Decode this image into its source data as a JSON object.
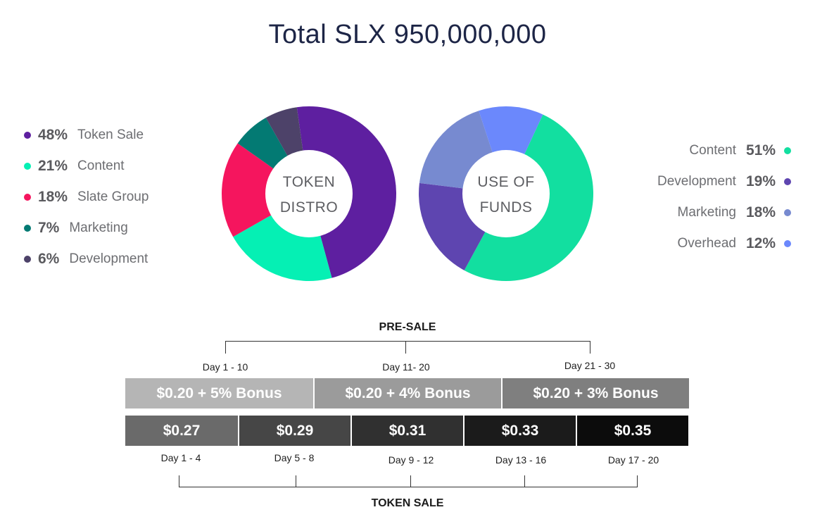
{
  "title": "Total SLX 950,000,000",
  "chart_data": [
    {
      "type": "pie",
      "center_label_lines": [
        "TOKEN",
        "DISTRO"
      ],
      "slices": [
        {
          "label": "Token Sale",
          "pct_label": "48%",
          "value": 48,
          "color": "#5e1fa0"
        },
        {
          "label": "Content",
          "pct_label": "21%",
          "value": 21,
          "color": "#05f0b4"
        },
        {
          "label": "Slate Group",
          "pct_label": "18%",
          "value": 18,
          "color": "#f5155e"
        },
        {
          "label": "Marketing",
          "pct_label": "7%",
          "value": 7,
          "color": "#037a73"
        },
        {
          "label": "Development",
          "pct_label": "6%",
          "value": 6,
          "color": "#4d4269"
        }
      ],
      "legend_position": "left"
    },
    {
      "type": "pie",
      "center_label_lines": [
        "USE OF",
        "FUNDS"
      ],
      "slices": [
        {
          "label": "Content",
          "pct_label": "51%",
          "value": 51,
          "color": "#12dfa0"
        },
        {
          "label": "Development",
          "pct_label": "19%",
          "value": 19,
          "color": "#5e45b0"
        },
        {
          "label": "Marketing",
          "pct_label": "18%",
          "value": 18,
          "color": "#778ad0"
        },
        {
          "label": "Overhead",
          "pct_label": "12%",
          "value": 12,
          "color": "#6b88fc"
        }
      ],
      "legend_position": "right"
    }
  ],
  "presale": {
    "heading": "PRE-SALE",
    "tiers": [
      {
        "days": "Day 1 - 10",
        "price": "$0.20 + 5% Bonus",
        "color": "#b5b5b5"
      },
      {
        "days": "Day 11- 20",
        "price": "$0.20 + 4% Bonus",
        "color": "#9b9b9b"
      },
      {
        "days": "Day 21 - 30",
        "price": "$0.20 + 3% Bonus",
        "color": "#7f7f7f"
      }
    ]
  },
  "token_sale": {
    "heading": "TOKEN SALE",
    "tiers": [
      {
        "days": "Day 1 - 4",
        "price": "$0.27",
        "color": "#6a6a6a"
      },
      {
        "days": "Day 5 - 8",
        "price": "$0.29",
        "color": "#464646"
      },
      {
        "days": "Day 9 - 12",
        "price": "$0.31",
        "color": "#303030"
      },
      {
        "days": "Day 13 - 16",
        "price": "$0.33",
        "color": "#1b1b1b"
      },
      {
        "days": "Day 17 - 20",
        "price": "$0.35",
        "color": "#0c0c0c"
      }
    ]
  }
}
